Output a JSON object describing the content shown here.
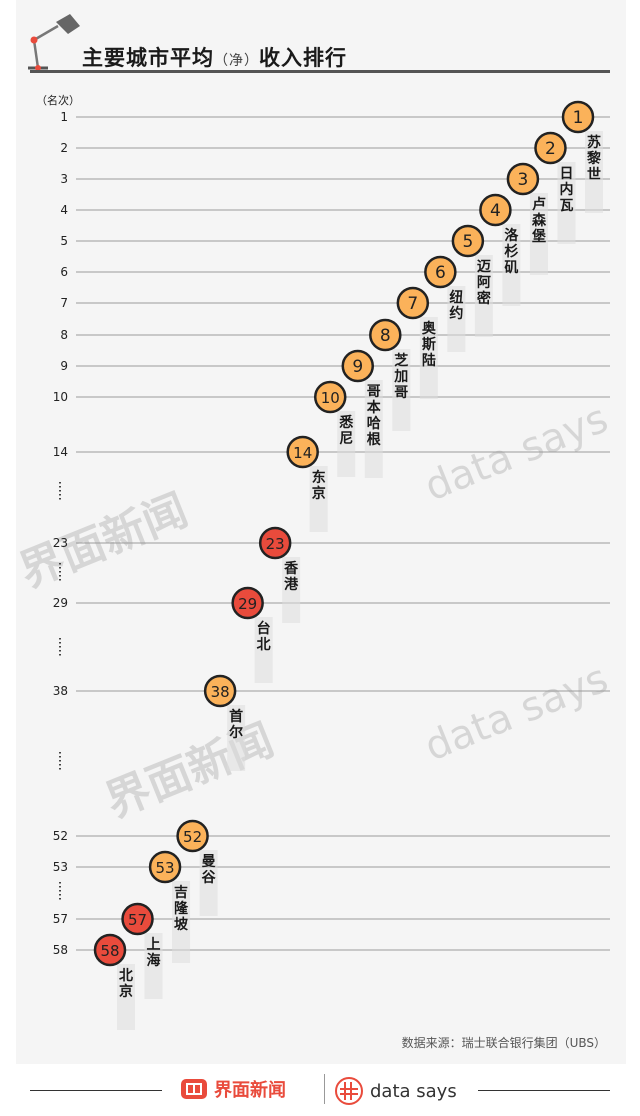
{
  "title": {
    "main_a": "主要城市平均",
    "paren": "（净）",
    "main_b": "收入排行"
  },
  "source": "数据来源：瑞士联合银行集团（UBS）",
  "footer": {
    "brand_cn": "界面新闻",
    "brand_en": "data says"
  },
  "watermarks": {
    "cn": "界面新闻",
    "en": "data says"
  },
  "colors": {
    "orange": "#fbb25a",
    "red": "#e94b3c",
    "ring": "#222222"
  },
  "chart_data": {
    "type": "scatter",
    "ylabel": "（名次）",
    "y_ticks": [
      1,
      2,
      3,
      4,
      5,
      6,
      7,
      8,
      9,
      10,
      14,
      23,
      29,
      38,
      52,
      53,
      57,
      58
    ],
    "points": [
      {
        "rank": 1,
        "city": "苏黎世",
        "color": "orange"
      },
      {
        "rank": 2,
        "city": "日内瓦",
        "color": "orange"
      },
      {
        "rank": 3,
        "city": "卢森堡",
        "color": "orange"
      },
      {
        "rank": 4,
        "city": "洛杉矶",
        "color": "orange"
      },
      {
        "rank": 5,
        "city": "迈阿密",
        "color": "orange"
      },
      {
        "rank": 6,
        "city": "纽约",
        "color": "orange"
      },
      {
        "rank": 7,
        "city": "奥斯陆",
        "color": "orange"
      },
      {
        "rank": 8,
        "city": "芝加哥",
        "color": "orange"
      },
      {
        "rank": 9,
        "city": "哥本哈根",
        "color": "orange"
      },
      {
        "rank": 10,
        "city": "悉尼",
        "color": "orange"
      },
      {
        "rank": 14,
        "city": "东京",
        "color": "orange"
      },
      {
        "rank": 23,
        "city": "香港",
        "color": "red"
      },
      {
        "rank": 29,
        "city": "台北",
        "color": "red"
      },
      {
        "rank": 38,
        "city": "首尔",
        "color": "orange"
      },
      {
        "rank": 52,
        "city": "曼谷",
        "color": "orange"
      },
      {
        "rank": 53,
        "city": "吉隆坡",
        "color": "orange"
      },
      {
        "rank": 57,
        "city": "上海",
        "color": "red"
      },
      {
        "rank": 58,
        "city": "北京",
        "color": "red"
      }
    ]
  }
}
